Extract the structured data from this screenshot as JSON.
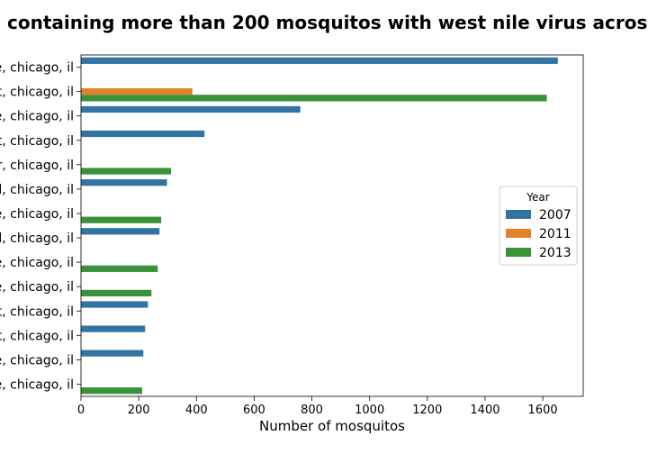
{
  "chart_data": {
    "type": "bar",
    "orientation": "horizontal",
    "title": "containing more than 200 mosquitos with west nile virus acros",
    "xlabel": "Number of mosquitos",
    "ylabel": "",
    "xlim": [
      0,
      1740
    ],
    "xticks": [
      0,
      200,
      400,
      600,
      800,
      1000,
      1200,
      1400,
      1600
    ],
    "categories": [
      "e, chicago, il",
      "t, chicago, il",
      "e, chicago, il",
      "t, chicago, il",
      "r, chicago, il",
      "l, chicago, il",
      "e, chicago, il",
      "l, chicago, il",
      "e, chicago, il",
      "e, chicago, il",
      "t, chicago, il",
      "t, chicago, il",
      "e, chicago, il",
      "e, chicago, il"
    ],
    "series": [
      {
        "name": "2007",
        "color": "#3274a1",
        "values": [
          1652,
          null,
          760,
          428,
          null,
          298,
          null,
          272,
          null,
          null,
          232,
          222,
          216,
          null
        ]
      },
      {
        "name": "2011",
        "color": "#e1812c",
        "values": [
          null,
          386,
          null,
          null,
          null,
          null,
          null,
          null,
          null,
          null,
          null,
          null,
          null,
          null
        ]
      },
      {
        "name": "2013",
        "color": "#3a923a",
        "values": [
          null,
          1614,
          null,
          null,
          312,
          null,
          278,
          null,
          266,
          244,
          null,
          null,
          null,
          212
        ]
      }
    ],
    "legend": {
      "title": "Year",
      "position": "center-right"
    },
    "grid": false
  }
}
